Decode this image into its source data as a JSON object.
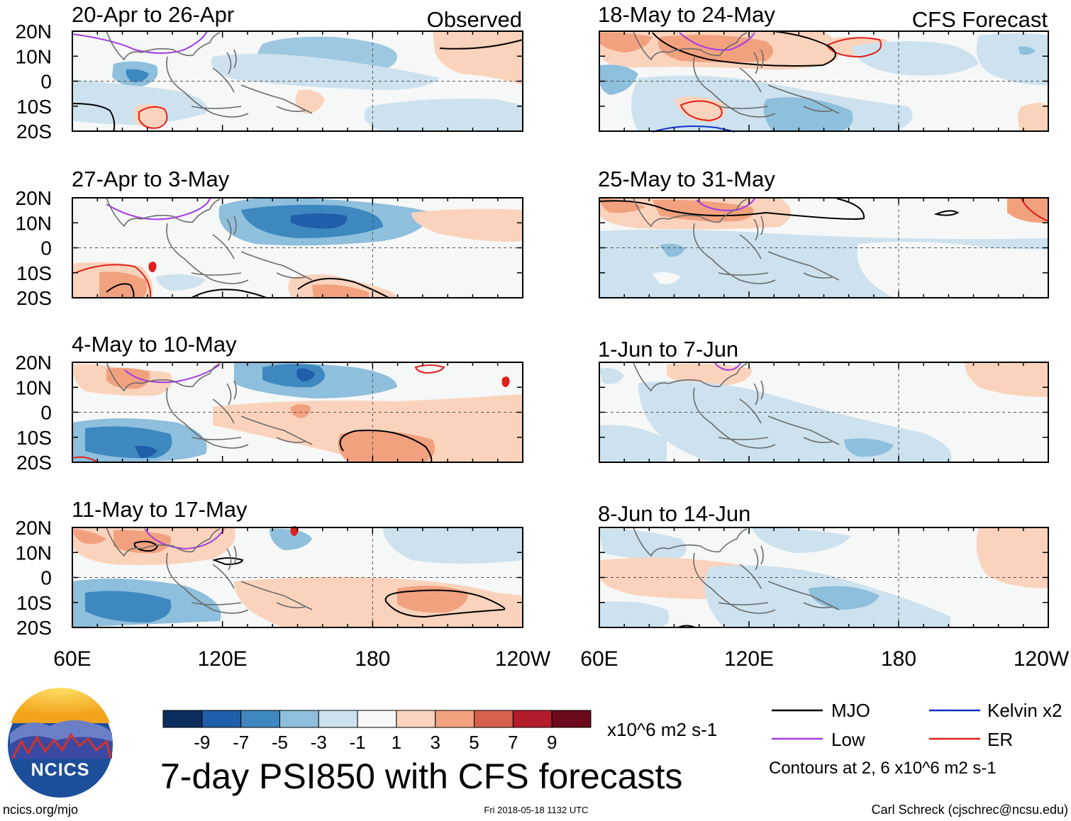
{
  "header": {
    "left_label": "Observed",
    "right_label": "CFS Forecast"
  },
  "latitude_ticks": [
    "20N",
    "10N",
    "0",
    "10S",
    "20S"
  ],
  "longitude_ticks": [
    "60E",
    "120E",
    "180",
    "120W"
  ],
  "panels_observed": [
    {
      "title": "20-Apr to 26-Apr"
    },
    {
      "title": "27-Apr to 3-May"
    },
    {
      "title": "4-May to 10-May"
    },
    {
      "title": "11-May to 17-May"
    }
  ],
  "panels_forecast": [
    {
      "title": "18-May to 24-May"
    },
    {
      "title": "25-May to 31-May"
    },
    {
      "title": "1-Jun to 7-Jun"
    },
    {
      "title": "8-Jun to 14-Jun"
    }
  ],
  "colorbar": {
    "tick_labels": [
      "-9",
      "-7",
      "-5",
      "-3",
      "-1",
      "1",
      "3",
      "5",
      "7",
      "9"
    ],
    "colors": [
      "#0b2e5e",
      "#1f5ea8",
      "#3e88c0",
      "#8ebfdc",
      "#cde2ee",
      "#f6f7f7",
      "#fbd3bc",
      "#f2a17f",
      "#d5604c",
      "#b31c2a",
      "#6b0a1a"
    ],
    "units": "x10^6 m2 s-1"
  },
  "main_title": "7-day PSI850 with CFS forecasts",
  "legend": {
    "items": [
      {
        "label": "MJO",
        "color": "#000000"
      },
      {
        "label": "Kelvin x2",
        "color": "#1530c8"
      },
      {
        "label": "Low",
        "color": "#a33ce6"
      },
      {
        "label": "ER",
        "color": "#e0201c"
      }
    ],
    "note": "Contours at 2, 6 x10^6 m2 s-1"
  },
  "logo": {
    "text": "NCICS"
  },
  "footer": {
    "left": "ncics.org/mjo",
    "center": "Fri 2018-05-18 1132 UTC",
    "right": "Carl Schreck (cjschrec@ncsu.edu)"
  }
}
